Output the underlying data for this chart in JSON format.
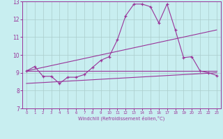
{
  "xlabel": "Windchill (Refroidissement éolien,°C)",
  "background_color": "#c8eef0",
  "line_color": "#993399",
  "grid_color": "#aacccc",
  "xlim": [
    -0.5,
    23.5
  ],
  "ylim": [
    7,
    13
  ],
  "xticks": [
    0,
    1,
    2,
    3,
    4,
    5,
    6,
    7,
    8,
    9,
    10,
    11,
    12,
    13,
    14,
    15,
    16,
    17,
    18,
    19,
    20,
    21,
    22,
    23
  ],
  "yticks": [
    7,
    8,
    9,
    10,
    11,
    12,
    13
  ],
  "line1_x": [
    0,
    1,
    2,
    3,
    4,
    5,
    6,
    7,
    8,
    9,
    10,
    11,
    12,
    13,
    14,
    15,
    16,
    17,
    18,
    19,
    20,
    21,
    22,
    23
  ],
  "line1_y": [
    9.1,
    9.35,
    8.8,
    8.8,
    8.4,
    8.75,
    8.75,
    8.9,
    9.3,
    9.7,
    9.9,
    10.85,
    12.2,
    12.85,
    12.85,
    12.7,
    11.8,
    12.85,
    11.4,
    9.85,
    9.9,
    9.1,
    9.0,
    8.85
  ],
  "line2_x": [
    0,
    23
  ],
  "line2_y": [
    9.1,
    9.1
  ],
  "line3_x": [
    0,
    23
  ],
  "line3_y": [
    9.1,
    11.4
  ],
  "line4_x": [
    0,
    23
  ],
  "line4_y": [
    8.4,
    9.0
  ]
}
